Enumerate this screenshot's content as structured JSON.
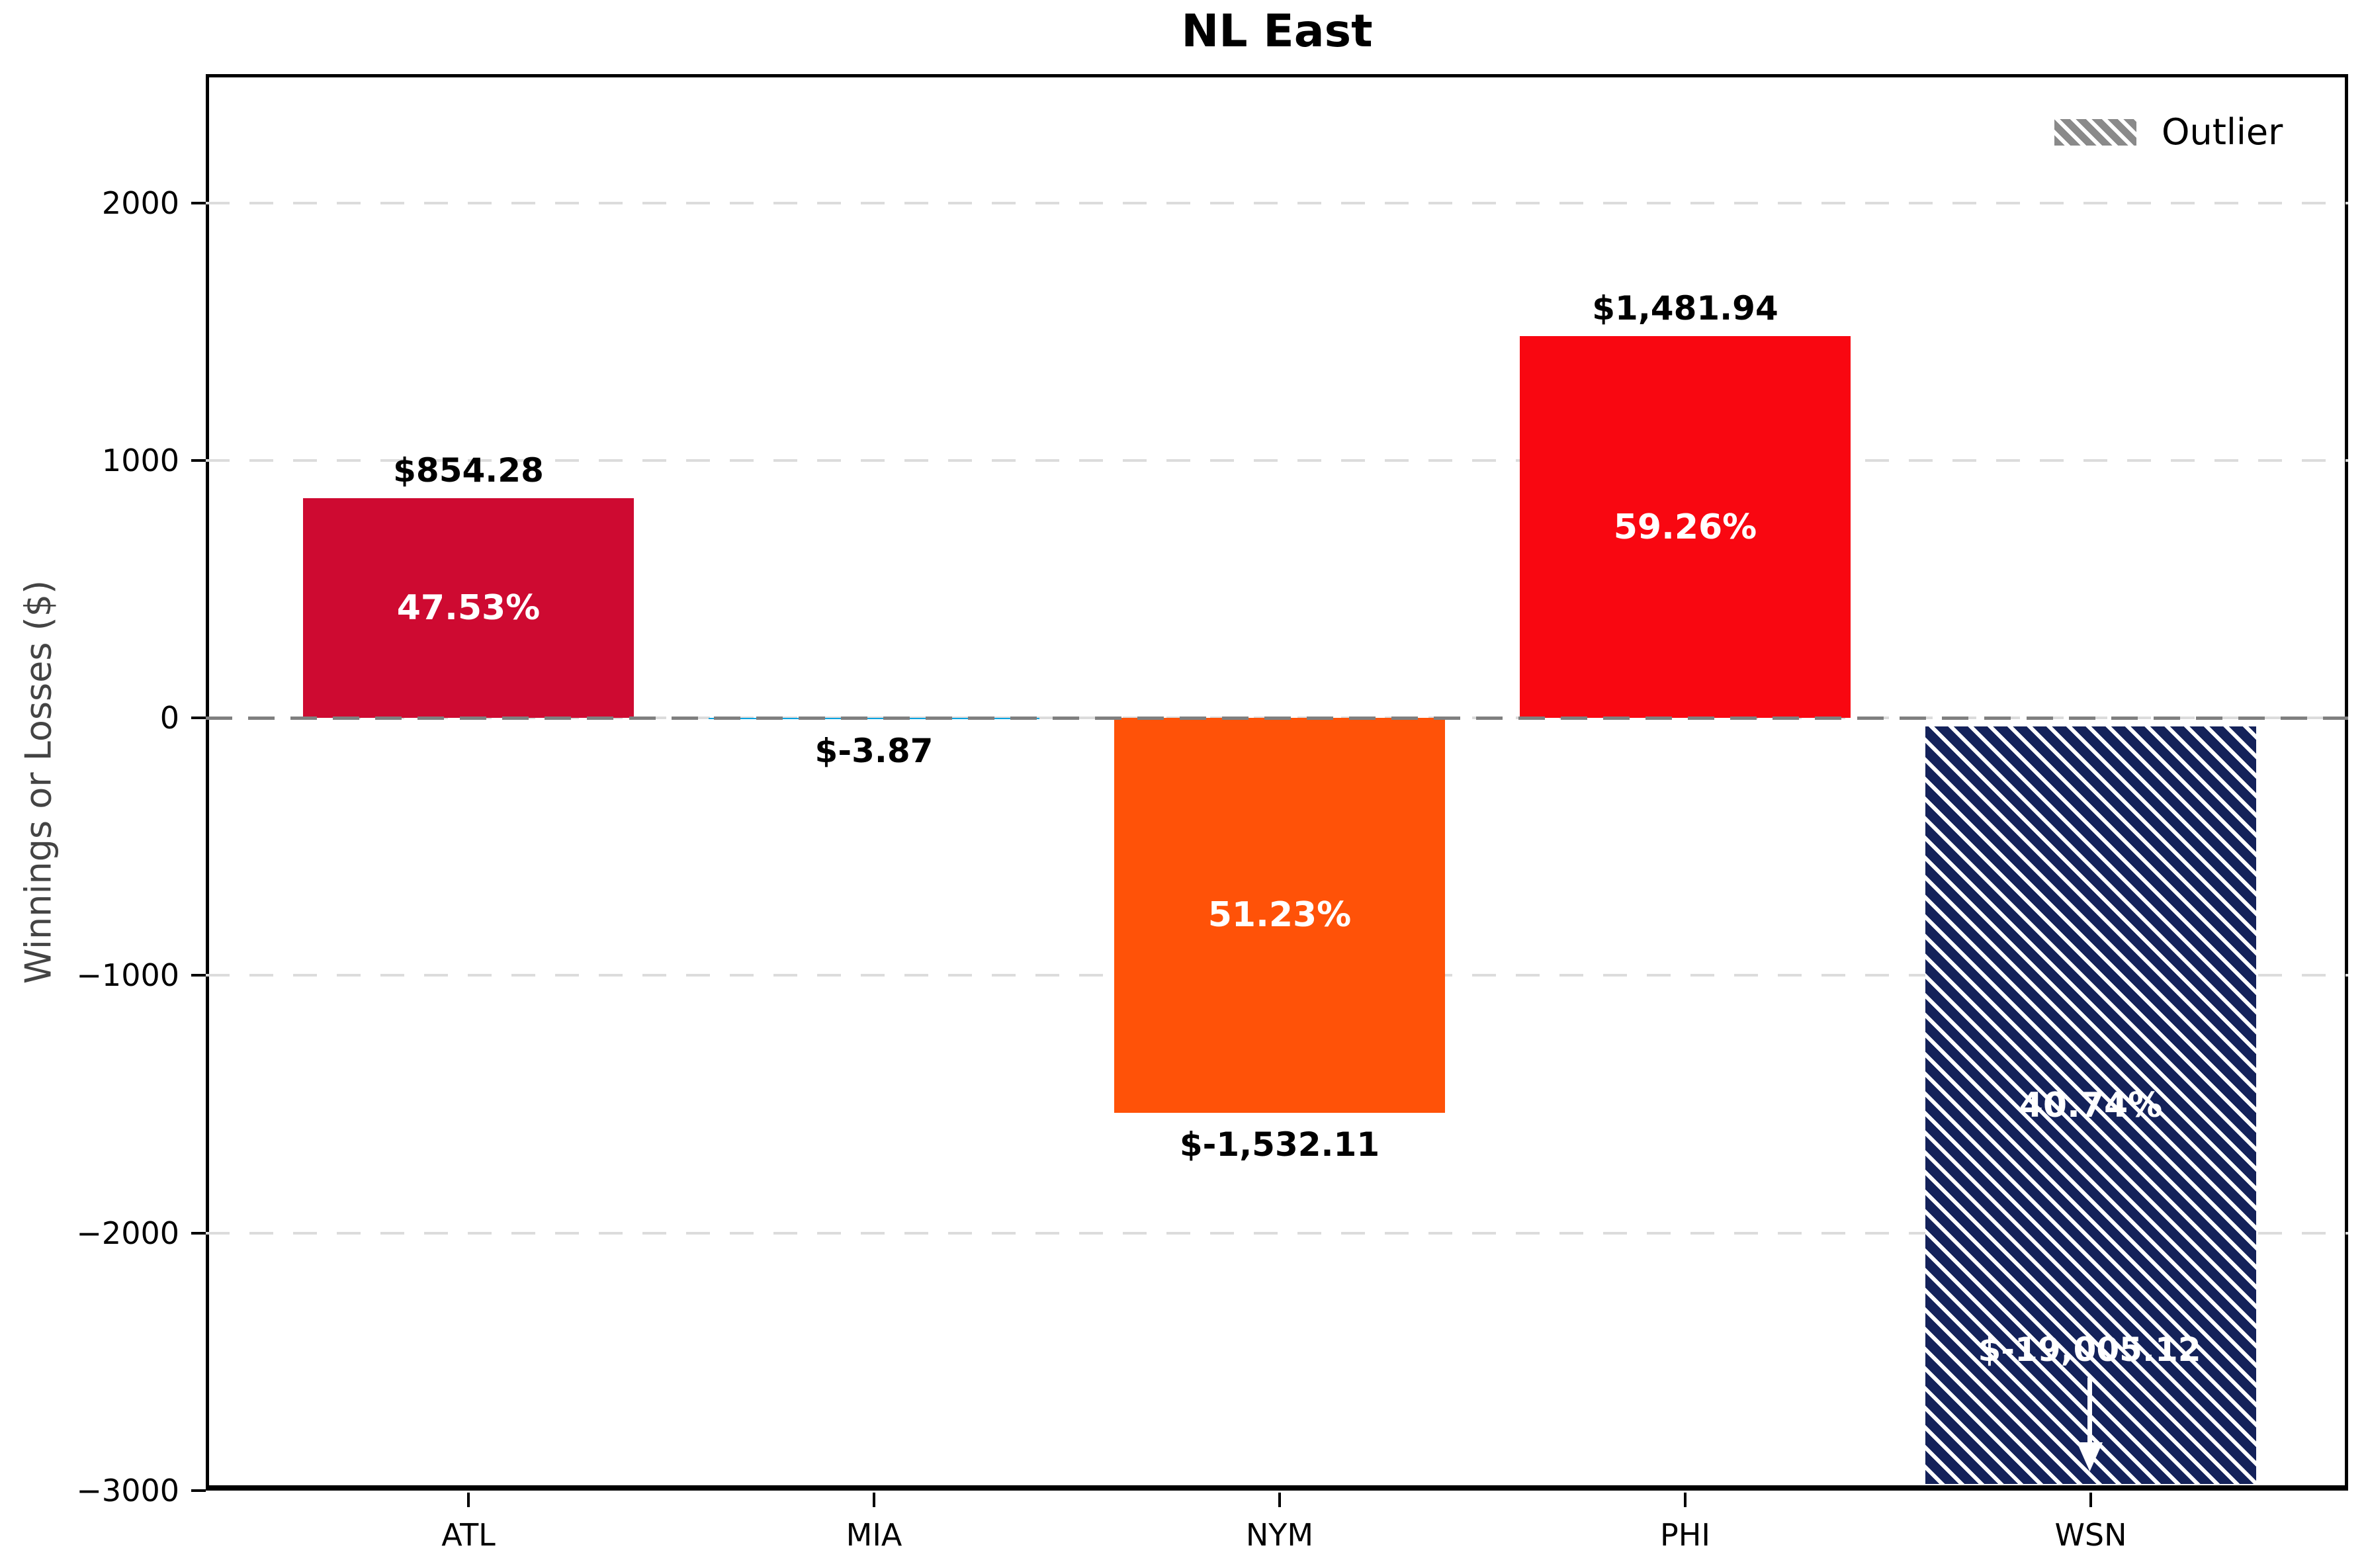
{
  "figure": {
    "title": "NL East"
  },
  "axes": {
    "ylabel": "Winnings or Losses ($)",
    "ytick_labels": [
      "2000",
      "1000",
      "0",
      "−1000",
      "−2000",
      "−3000"
    ],
    "ytick_values": [
      2000,
      1000,
      0,
      -1000,
      -2000,
      -3000
    ],
    "xtick_labels": [
      "ATL",
      "MIA",
      "NYM",
      "PHI",
      "WSN"
    ]
  },
  "legend": {
    "label": "Outlier",
    "swatch_color": "#8a8a8a",
    "hatch": "\\\\"
  },
  "chart_data": {
    "type": "bar",
    "title": "NL East",
    "xlabel": "",
    "ylabel": "Winnings or Losses ($)",
    "categories": [
      "ATL",
      "MIA",
      "NYM",
      "PHI",
      "WSN"
    ],
    "values": [
      854.28,
      -3.87,
      -1532.11,
      1481.94,
      -19005.12
    ],
    "value_labels": [
      "$854.28",
      "$-3.87",
      "$-1,532.11",
      "$1,481.94",
      "$-19,005.12"
    ],
    "percent_labels": [
      "47.53%",
      "",
      "51.23%",
      "59.26%",
      "40.74%"
    ],
    "bar_colors": [
      "#CE0A31",
      "#00A3E0",
      "#FF5208",
      "#F90711",
      "#14225A"
    ],
    "outlier_flags": [
      false,
      false,
      false,
      false,
      true
    ],
    "outlier_note": "bar clipped at axis bottom, arrow indicates value continues below",
    "ylim": [
      -3000,
      2500
    ],
    "yticks": [
      2000,
      1000,
      0,
      -1000,
      -2000,
      -3000
    ],
    "grid": "horizontal dashed lines at y ticks",
    "zero_line": "dashed gray horizontal line at 0",
    "legend_position": "upper right"
  }
}
